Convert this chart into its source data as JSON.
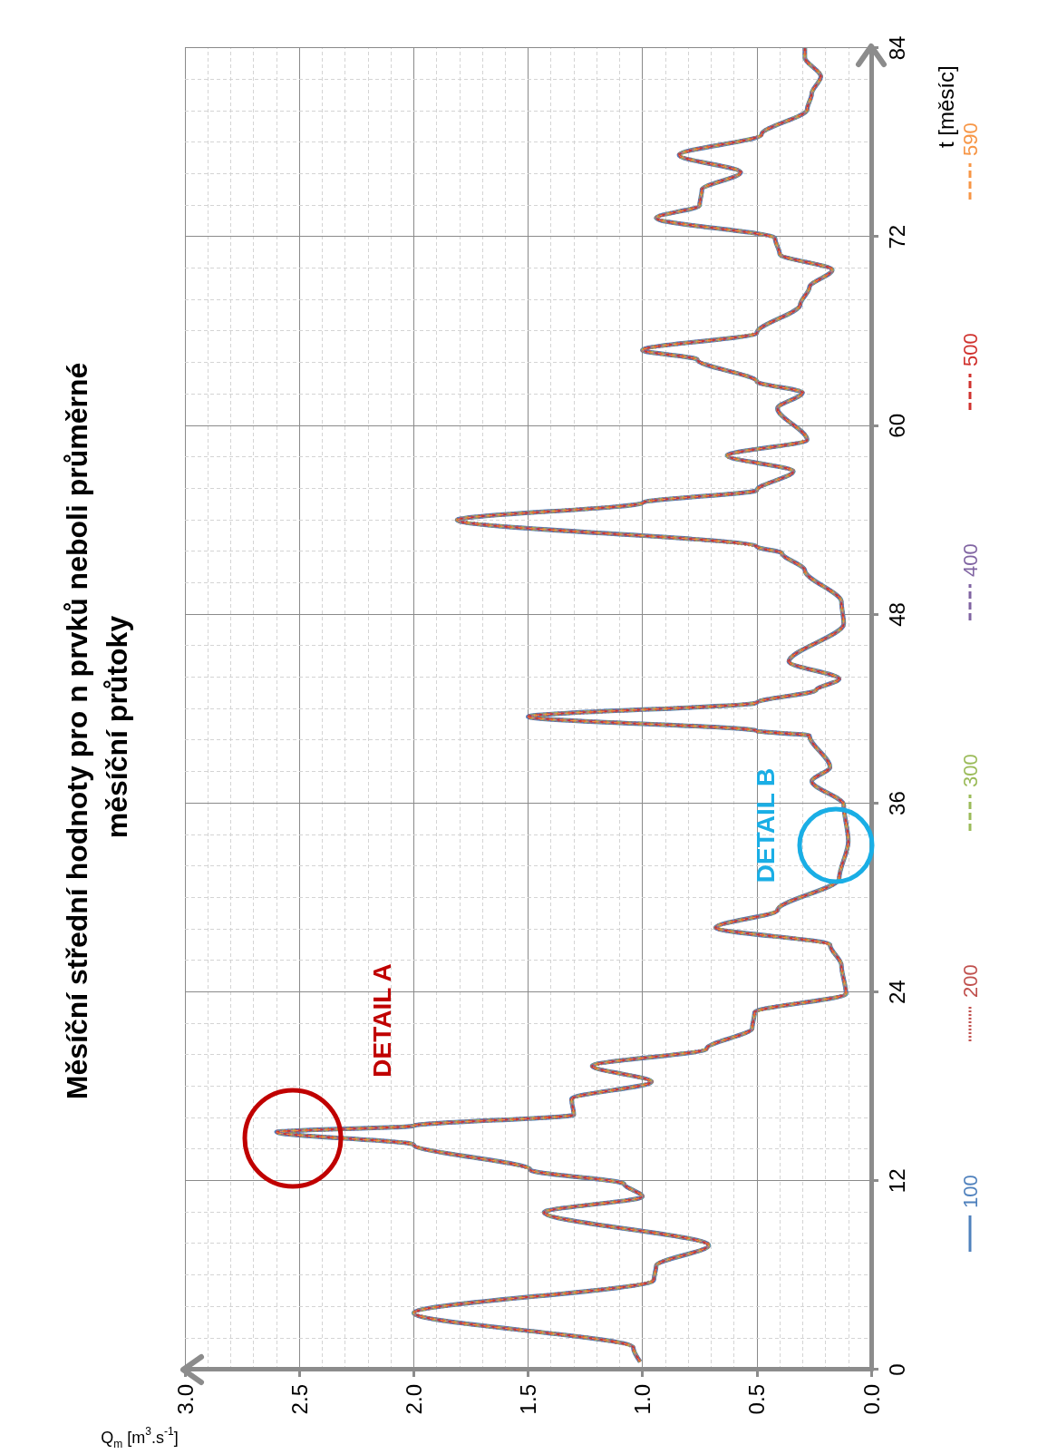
{
  "chart_data": {
    "type": "line",
    "title": "Měsíční střední hodnoty pro n prvků neboli průměrné měsíční průtoky",
    "xlabel": "Q$_{m}$ [m$^{3}$.s$^{-1}$]",
    "ylabel": "t [měsíc]",
    "x": [
      1.01,
      1.04,
      2.0,
      0.95,
      0.94,
      0.71,
      1.43,
      1.0,
      1.08,
      1.49,
      2.0,
      2.6,
      2.0,
      1.3,
      1.31,
      0.96,
      1.22,
      0.72,
      0.52,
      0.51,
      0.11,
      0.13,
      0.18,
      0.68,
      0.41,
      0.14,
      0.1,
      0.12,
      0.26,
      0.18,
      0.27,
      0.5,
      1.5,
      0.5,
      0.24,
      0.14,
      0.36,
      0.12,
      0.13,
      0.29,
      0.39,
      0.5,
      1.81,
      1.0,
      0.5,
      0.34,
      0.63,
      0.28,
      0.41,
      0.3,
      0.5,
      0.76,
      1.0,
      0.5,
      0.31,
      0.27,
      0.17,
      0.4,
      0.42,
      0.94,
      0.75,
      0.74,
      0.57,
      0.84,
      0.48,
      0.28,
      0.26,
      0.22,
      0.29,
      0.29
    ],
    "series": [
      {
        "name": "100",
        "color": "#4f81bd",
        "line_style": "solid",
        "values": [
          0.5,
          1.4,
          3.6,
          5.7,
          6.6,
          7.9,
          10.0,
          11.0,
          11.8,
          12.7,
          14.3,
          15.1,
          15.5,
          16.2,
          17.2,
          18.3,
          19.3,
          20.4,
          21.7,
          22.7,
          23.9,
          25.7,
          27.0,
          28.1,
          29.2,
          31.2,
          33.6,
          35.9,
          37.4,
          38.3,
          40.3,
          40.6,
          41.5,
          42.4,
          43.2,
          43.9,
          45.0,
          47.4,
          48.8,
          50.8,
          51.9,
          52.3,
          54.0,
          55.1,
          55.9,
          57.1,
          58.1,
          59.1,
          61.1,
          62.1,
          62.8,
          64.2,
          64.8,
          65.9,
          67.7,
          68.8,
          69.9,
          70.9,
          71.9,
          73.2,
          74.0,
          75.0,
          76.1,
          77.2,
          78.5,
          80.1,
          81.1,
          82.2,
          83.4,
          84.0
        ]
      },
      {
        "name": "200",
        "color": "#c0504d",
        "line_style": "dotted",
        "values": [
          0.5,
          1.4,
          3.6,
          5.7,
          6.6,
          7.9,
          10.0,
          11.0,
          11.8,
          12.7,
          14.3,
          15.1,
          15.5,
          16.2,
          17.2,
          18.3,
          19.3,
          20.4,
          21.7,
          22.7,
          23.9,
          25.7,
          27.0,
          28.1,
          29.2,
          31.2,
          33.6,
          35.9,
          37.4,
          38.3,
          40.3,
          40.6,
          41.5,
          42.4,
          43.2,
          43.9,
          45.0,
          47.4,
          48.8,
          50.8,
          51.9,
          52.3,
          54.0,
          55.1,
          55.9,
          57.1,
          58.1,
          59.1,
          61.1,
          62.1,
          62.8,
          64.2,
          64.8,
          65.9,
          67.7,
          68.8,
          69.9,
          70.9,
          71.9,
          73.2,
          74.0,
          75.0,
          76.1,
          77.2,
          78.5,
          80.1,
          81.1,
          82.2,
          83.4,
          84.0
        ]
      },
      {
        "name": "300",
        "color": "#9bbb59",
        "line_style": "dashed",
        "values": [
          0.5,
          1.4,
          3.6,
          5.7,
          6.6,
          7.9,
          10.0,
          11.0,
          11.8,
          12.7,
          14.3,
          15.1,
          15.5,
          16.2,
          17.2,
          18.3,
          19.3,
          20.4,
          21.7,
          22.7,
          23.9,
          25.7,
          27.0,
          28.1,
          29.2,
          31.2,
          33.6,
          35.9,
          37.4,
          38.3,
          40.3,
          40.6,
          41.5,
          42.4,
          43.2,
          43.9,
          45.0,
          47.4,
          48.8,
          50.8,
          51.9,
          52.3,
          54.0,
          55.1,
          55.9,
          57.1,
          58.1,
          59.1,
          61.1,
          62.1,
          62.8,
          64.2,
          64.8,
          65.9,
          67.7,
          68.8,
          69.9,
          70.9,
          71.9,
          73.2,
          74.0,
          75.0,
          76.1,
          77.2,
          78.5,
          80.1,
          81.1,
          82.2,
          83.4,
          84.0
        ]
      },
      {
        "name": "400",
        "color": "#8064a2",
        "line_style": "dashed",
        "values": [
          0.5,
          1.4,
          3.6,
          5.7,
          6.6,
          7.9,
          10.0,
          11.0,
          11.8,
          12.7,
          14.3,
          15.1,
          15.5,
          16.2,
          17.2,
          18.3,
          19.3,
          20.4,
          21.7,
          22.7,
          23.9,
          25.7,
          27.0,
          28.1,
          29.2,
          31.2,
          33.6,
          35.9,
          37.4,
          38.3,
          40.3,
          40.6,
          41.5,
          42.4,
          43.2,
          43.9,
          45.0,
          47.4,
          48.8,
          50.8,
          51.9,
          52.3,
          54.0,
          55.1,
          55.9,
          57.1,
          58.1,
          59.1,
          61.1,
          62.1,
          62.8,
          64.2,
          64.8,
          65.9,
          67.7,
          68.8,
          69.9,
          70.9,
          71.9,
          73.2,
          74.0,
          75.0,
          76.1,
          77.2,
          78.5,
          80.1,
          81.1,
          82.2,
          83.4,
          84.0
        ]
      },
      {
        "name": "500",
        "color": "#d0312d",
        "line_style": "dashed",
        "values": [
          0.5,
          1.4,
          3.6,
          5.7,
          6.6,
          7.9,
          10.0,
          11.0,
          11.8,
          12.7,
          14.3,
          15.1,
          15.5,
          16.2,
          17.2,
          18.3,
          19.3,
          20.4,
          21.7,
          22.7,
          23.9,
          25.7,
          27.0,
          28.1,
          29.2,
          31.2,
          33.6,
          35.9,
          37.4,
          38.3,
          40.3,
          40.6,
          41.5,
          42.4,
          43.2,
          43.9,
          45.0,
          47.4,
          48.8,
          50.8,
          51.9,
          52.3,
          54.0,
          55.1,
          55.9,
          57.1,
          58.1,
          59.1,
          61.1,
          62.1,
          62.8,
          64.2,
          64.8,
          65.9,
          67.7,
          68.8,
          69.9,
          70.9,
          71.9,
          73.2,
          74.0,
          75.0,
          76.1,
          77.2,
          78.5,
          80.1,
          81.1,
          82.2,
          83.4,
          84.0
        ]
      },
      {
        "name": "590",
        "color": "#f79646",
        "line_style": "dashed",
        "values": [
          0.5,
          1.4,
          3.6,
          5.7,
          6.6,
          7.9,
          10.0,
          11.0,
          11.8,
          12.7,
          14.3,
          15.1,
          15.5,
          16.2,
          17.2,
          18.3,
          19.3,
          20.4,
          21.7,
          22.7,
          23.9,
          25.7,
          27.0,
          28.1,
          29.2,
          31.2,
          33.6,
          35.9,
          37.4,
          38.3,
          40.3,
          40.6,
          41.5,
          42.4,
          43.2,
          43.9,
          45.0,
          47.4,
          48.8,
          50.8,
          51.9,
          52.3,
          54.0,
          55.1,
          55.9,
          57.1,
          58.1,
          59.1,
          61.1,
          62.1,
          62.8,
          64.2,
          64.8,
          65.9,
          67.7,
          68.8,
          69.9,
          70.9,
          71.9,
          73.2,
          74.0,
          75.0,
          76.1,
          77.2,
          78.5,
          80.1,
          81.1,
          82.2,
          83.4,
          84.0
        ]
      }
    ],
    "xlim": [
      3,
      0
    ],
    "xticks": [
      {
        "value": 3,
        "label": "3.0"
      },
      {
        "value": 2.5,
        "label": "2.5"
      },
      {
        "value": 2,
        "label": "2.0"
      },
      {
        "value": 1.5,
        "label": "1.5"
      },
      {
        "value": 1,
        "label": "1.0"
      },
      {
        "value": 0.5,
        "label": "0.5"
      },
      {
        "value": 0,
        "label": "0.0"
      }
    ],
    "ylim": [
      0,
      84
    ],
    "yticks": [
      0,
      12,
      24,
      36,
      48,
      60,
      72,
      84
    ],
    "annotations": [
      "DETAIL A",
      "DETAIL B"
    ],
    "grid": true,
    "legend": "right",
    "marker": "none"
  }
}
